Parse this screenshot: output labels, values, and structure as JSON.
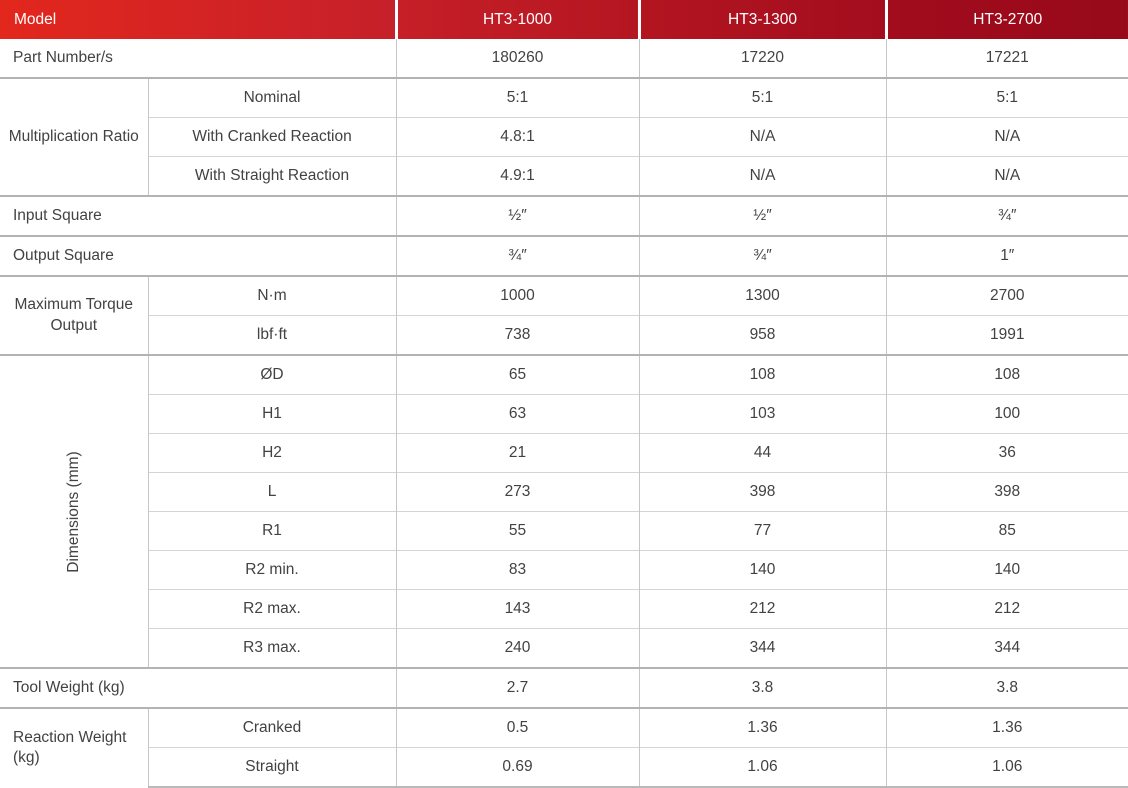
{
  "colors": {
    "header_red_left": "#e2271d",
    "header_red_right": "#970919",
    "section_border": "#b3b3b3",
    "inner_border": "#d4d4d4",
    "vertical_border": "#c6c6c6",
    "text": "#424242",
    "header_text": "#ffffff"
  },
  "header": {
    "model_label": "Model",
    "columns": [
      "HT3-1000",
      "HT3-1300",
      "HT3-2700"
    ]
  },
  "part_number": {
    "label": "Part Number/s",
    "values": [
      "180260",
      "17220",
      "17221"
    ]
  },
  "multiplication_ratio": {
    "label": "Multiplication Ratio",
    "rows": [
      {
        "sub": "Nominal",
        "values": [
          "5:1",
          "5:1",
          "5:1"
        ]
      },
      {
        "sub": "With Cranked Reaction",
        "values": [
          "4.8:1",
          "N/A",
          "N/A"
        ]
      },
      {
        "sub": "With Straight Reaction",
        "values": [
          "4.9:1",
          "N/A",
          "N/A"
        ]
      }
    ]
  },
  "input_square": {
    "label": "Input Square",
    "values": [
      "½″",
      "½″",
      "¾″"
    ]
  },
  "output_square": {
    "label": "Output Square",
    "values": [
      "¾″",
      "¾″",
      "1″"
    ]
  },
  "max_torque": {
    "label": "Maximum Torque Output",
    "rows": [
      {
        "sub": "N·m",
        "values": [
          "1000",
          "1300",
          "2700"
        ]
      },
      {
        "sub": "lbf·ft",
        "values": [
          "738",
          "958",
          "1991"
        ]
      }
    ]
  },
  "dimensions": {
    "label": "Dimensions (mm)",
    "rows": [
      {
        "sub": "ØD",
        "values": [
          "65",
          "108",
          "108"
        ]
      },
      {
        "sub": "H1",
        "values": [
          "63",
          "103",
          "100"
        ]
      },
      {
        "sub": "H2",
        "values": [
          "21",
          "44",
          "36"
        ]
      },
      {
        "sub": "L",
        "values": [
          "273",
          "398",
          "398"
        ]
      },
      {
        "sub": "R1",
        "values": [
          "55",
          "77",
          "85"
        ]
      },
      {
        "sub": "R2 min.",
        "values": [
          "83",
          "140",
          "140"
        ]
      },
      {
        "sub": "R2 max.",
        "values": [
          "143",
          "212",
          "212"
        ]
      },
      {
        "sub": "R3 max.",
        "values": [
          "240",
          "344",
          "344"
        ]
      }
    ]
  },
  "tool_weight": {
    "label": "Tool Weight (kg)",
    "values": [
      "2.7",
      "3.8",
      "3.8"
    ]
  },
  "reaction_weight": {
    "label": "Reaction Weight (kg)",
    "rows": [
      {
        "sub": "Cranked",
        "values": [
          "0.5",
          "1.36",
          "1.36"
        ]
      },
      {
        "sub": "Straight",
        "values": [
          "0.69",
          "1.06",
          "1.06"
        ]
      }
    ]
  }
}
